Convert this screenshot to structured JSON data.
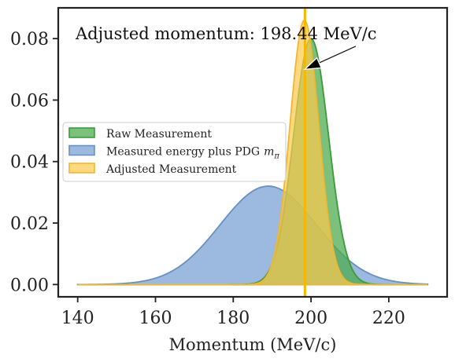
{
  "chart_data": {
    "type": "area",
    "xlabel": "Momentum (MeV/c)",
    "ylabel": "",
    "xlim": [
      135,
      235
    ],
    "ylim": [
      -0.004,
      0.09
    ],
    "xticks": [
      140,
      160,
      180,
      200,
      220
    ],
    "yticks": [
      0.0,
      0.02,
      0.04,
      0.06,
      0.08
    ],
    "xtick_labels": [
      "140",
      "160",
      "180",
      "200",
      "220"
    ],
    "ytick_labels": [
      "0.00",
      "0.02",
      "0.04",
      "0.06",
      "0.08"
    ],
    "grid": false,
    "legend_position": "center-left",
    "series": [
      {
        "name": "Measured energy plus PDG",
        "name_math": "m",
        "name_sub": "π",
        "mean": 189,
        "sigma": 12.4,
        "peak": 0.032,
        "color": "#7ba3d6",
        "edge": "#6b8fbf",
        "x_range": [
          140,
          230
        ]
      },
      {
        "name": "Raw Measurement",
        "mean": 200,
        "sigma": 4.5,
        "peak": 0.08,
        "color": "#4fab4f",
        "edge": "#3c9a3c",
        "x_range": [
          140,
          230
        ]
      },
      {
        "name": "Adjusted Measurement",
        "mean": 198.3,
        "sigma": 3.7,
        "peak": 0.086,
        "color": "#ffc94d",
        "edge": "#f2b632",
        "x_range": [
          140,
          230
        ]
      }
    ],
    "vline": {
      "x": 198.44,
      "color": "#f5b800"
    },
    "annotation": {
      "text": "Adjusted momentum: 198.44 MeV/c",
      "arrow_tip": {
        "x": 198.4,
        "y": 0.07
      },
      "arrow_tail": {
        "x": 211.5,
        "y": 0.0775
      }
    }
  }
}
